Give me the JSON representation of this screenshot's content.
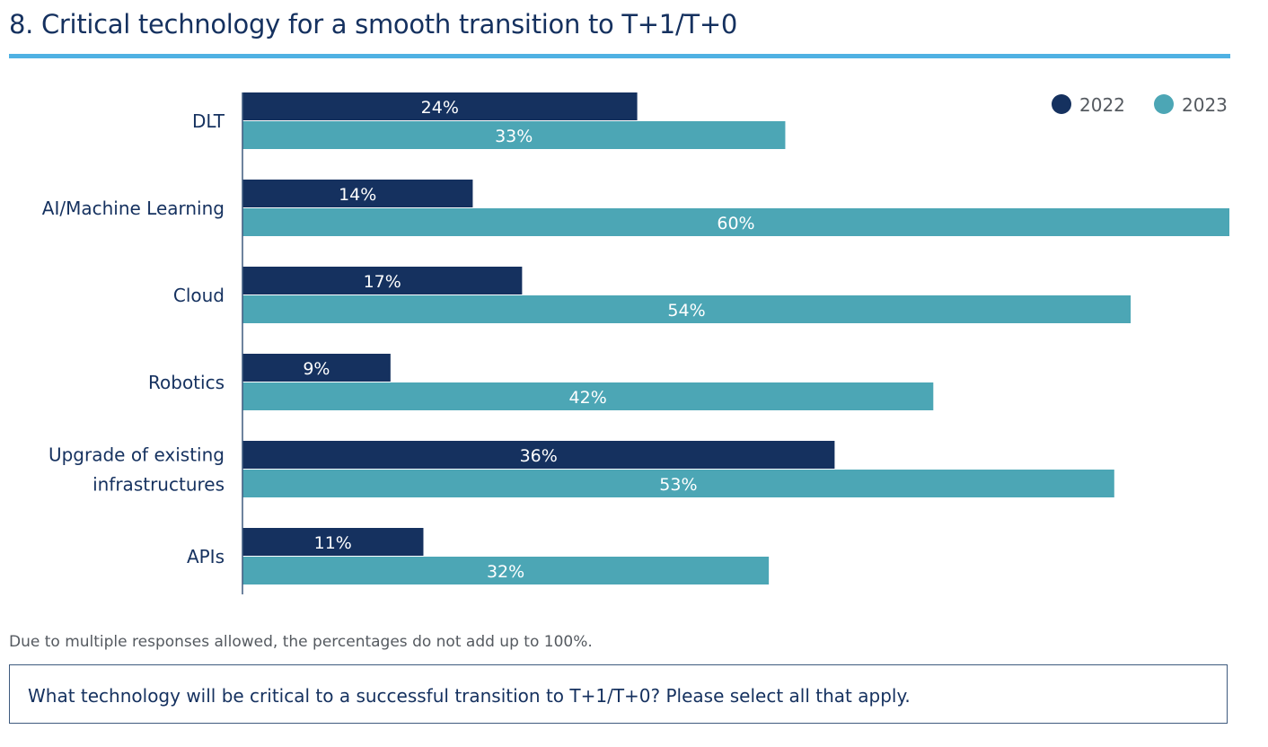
{
  "header": {
    "title": "8. Critical technology for a smooth transition to T+1/T+0"
  },
  "footnote": "Due to multiple responses allowed, the percentages do not add up to 100%.",
  "question": "What technology will be critical to a successful transition to T+1/T+0? Please select all that apply.",
  "colors": {
    "series_2022": "#15315f",
    "series_2023": "#4ca6b5",
    "category_text": "#15315f",
    "legend_text": "#555a60",
    "axis": "#3e5a7e"
  },
  "chart_data": {
    "type": "bar",
    "orientation": "horizontal",
    "title": "8. Critical technology for a smooth transition to T+1/T+0",
    "xlabel": "",
    "ylabel": "",
    "xlim": [
      0,
      60
    ],
    "grid": false,
    "legend_position": "top-right",
    "categories": [
      [
        "DLT"
      ],
      [
        "AI/Machine Learning"
      ],
      [
        "Cloud"
      ],
      [
        "Robotics"
      ],
      [
        "Upgrade of existing",
        "infrastructures"
      ],
      [
        "APIs"
      ]
    ],
    "series": [
      {
        "name": "2022",
        "values": [
          24,
          14,
          17,
          9,
          36,
          11
        ],
        "labels": [
          "24%",
          "14%",
          "17%",
          "9%",
          "36%",
          "11%"
        ]
      },
      {
        "name": "2023",
        "values": [
          33,
          60,
          54,
          42,
          53,
          32
        ],
        "labels": [
          "33%",
          "60%",
          "54%",
          "42%",
          "53%",
          "32%"
        ]
      }
    ],
    "unit": "%"
  }
}
